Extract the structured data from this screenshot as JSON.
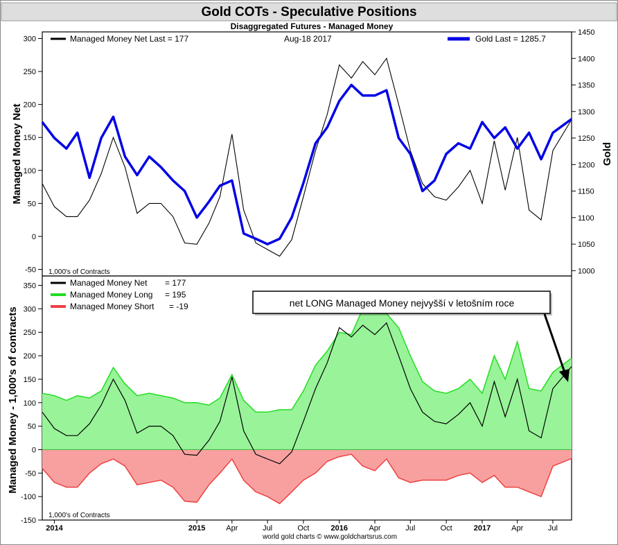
{
  "title": "Gold COTs - Speculative Positions",
  "subtitle": "Disaggregated Futures - Managed Money",
  "footer": "world gold charts © www.goldchartsrus.com",
  "colors": {
    "background": "#ffffff",
    "gold": "#0000e6",
    "net": "#000000",
    "long_line": "#22dd22",
    "long_fill": "#99f399",
    "short_line": "#ee4040",
    "short_fill": "#f8a0a0"
  },
  "top_panel": {
    "legend_net": "Managed Money Net   Last = 177",
    "legend_date": "Aug-18  2017",
    "legend_gold": "Gold Last = 1285.7",
    "ylabel_left": "Managed Money Net",
    "ylabel_right": "Gold",
    "units_note": "1,000's of Contracts",
    "left_ticks": [
      "300",
      "250",
      "200",
      "150",
      "100",
      "50",
      "0",
      "-50"
    ],
    "right_ticks": [
      "1450",
      "1400",
      "1350",
      "1300",
      "1250",
      "1200",
      "1150",
      "1100",
      "1050",
      "1000"
    ]
  },
  "bottom_panel": {
    "legend": [
      {
        "label": "Managed Money Net",
        "value": "= 177"
      },
      {
        "label": "Managed Money Long",
        "value": "= 195"
      },
      {
        "label": "Managed Money Short",
        "value": "= -19"
      }
    ],
    "annotation": "net LONG Managed Money nejvyšší v letošním roce",
    "ylabel": "Managed Money - 1,000's of contracts",
    "units_note": "1,000's of Contracts",
    "ticks": [
      "350",
      "300",
      "250",
      "200",
      "150",
      "100",
      "50",
      "0",
      "-50",
      "-100",
      "-150"
    ]
  },
  "x_axis": {
    "labels": [
      "2014",
      "2015",
      "Apr",
      "Jul",
      "Oct",
      "2016",
      "Apr",
      "Jul",
      "Oct",
      "2017",
      "Apr",
      "Jul"
    ],
    "bold": [
      true,
      true,
      false,
      false,
      false,
      true,
      false,
      false,
      false,
      true,
      false,
      false
    ]
  },
  "chart_data": [
    {
      "type": "line",
      "title": "Gold COTs - Speculative Positions",
      "subtitle": "Disaggregated Futures - Managed Money",
      "ylabel": "Managed Money Net",
      "y2label": "Gold",
      "ylim": [
        -60,
        310
      ],
      "y2lim": [
        990,
        1450
      ],
      "x_range": [
        "2013-12-01",
        "2017-08-18"
      ],
      "series": [
        {
          "name": "Managed Money Net",
          "axis": "left",
          "x": [
            "2013-12-01",
            "2014-01-01",
            "2014-02-01",
            "2014-03-01",
            "2014-04-01",
            "2014-05-01",
            "2014-06-01",
            "2014-07-01",
            "2014-08-01",
            "2014-09-01",
            "2014-10-01",
            "2014-11-01",
            "2014-12-01",
            "2015-01-01",
            "2015-02-01",
            "2015-03-01",
            "2015-04-01",
            "2015-05-01",
            "2015-06-01",
            "2015-07-01",
            "2015-08-01",
            "2015-09-01",
            "2015-10-01",
            "2015-11-01",
            "2015-12-01",
            "2016-01-01",
            "2016-02-01",
            "2016-03-01",
            "2016-04-01",
            "2016-05-01",
            "2016-06-01",
            "2016-07-01",
            "2016-08-01",
            "2016-09-01",
            "2016-10-01",
            "2016-11-01",
            "2016-12-01",
            "2017-01-01",
            "2017-02-01",
            "2017-03-01",
            "2017-04-01",
            "2017-05-01",
            "2017-06-01",
            "2017-07-01",
            "2017-08-18"
          ],
          "values": [
            80,
            45,
            30,
            30,
            55,
            95,
            150,
            105,
            35,
            50,
            50,
            30,
            -10,
            -12,
            20,
            60,
            155,
            40,
            -10,
            -20,
            -30,
            -5,
            60,
            130,
            185,
            260,
            240,
            265,
            245,
            270,
            200,
            130,
            80,
            60,
            55,
            75,
            100,
            50,
            145,
            70,
            150,
            40,
            25,
            130,
            177
          ]
        },
        {
          "name": "Gold",
          "axis": "right",
          "x": [
            "2013-12-01",
            "2014-01-01",
            "2014-02-01",
            "2014-03-01",
            "2014-04-01",
            "2014-05-01",
            "2014-06-01",
            "2014-07-01",
            "2014-08-01",
            "2014-09-01",
            "2014-10-01",
            "2014-11-01",
            "2014-12-01",
            "2015-01-01",
            "2015-02-01",
            "2015-03-01",
            "2015-04-01",
            "2015-05-01",
            "2015-06-01",
            "2015-07-01",
            "2015-08-01",
            "2015-09-01",
            "2015-10-01",
            "2015-11-01",
            "2015-12-01",
            "2016-01-01",
            "2016-02-01",
            "2016-03-01",
            "2016-04-01",
            "2016-05-01",
            "2016-06-01",
            "2016-07-01",
            "2016-08-01",
            "2016-09-01",
            "2016-10-01",
            "2016-11-01",
            "2016-12-01",
            "2017-01-01",
            "2017-02-01",
            "2017-03-01",
            "2017-04-01",
            "2017-05-01",
            "2017-06-01",
            "2017-07-01",
            "2017-08-18"
          ],
          "values": [
            1280,
            1250,
            1230,
            1260,
            1175,
            1250,
            1290,
            1215,
            1180,
            1215,
            1195,
            1170,
            1150,
            1100,
            1130,
            1160,
            1170,
            1070,
            1060,
            1050,
            1060,
            1100,
            1165,
            1240,
            1270,
            1320,
            1350,
            1330,
            1330,
            1340,
            1250,
            1220,
            1150,
            1170,
            1220,
            1240,
            1230,
            1280,
            1250,
            1270,
            1230,
            1260,
            1210,
            1260,
            1285.7
          ]
        }
      ]
    },
    {
      "type": "area",
      "ylabel": "Managed Money - 1,000's of contracts",
      "ylim": [
        -150,
        370
      ],
      "x_range": [
        "2013-12-01",
        "2017-08-18"
      ],
      "series": [
        {
          "name": "Managed Money Long",
          "x": [
            "2013-12-01",
            "2014-01-01",
            "2014-02-01",
            "2014-03-01",
            "2014-04-01",
            "2014-05-01",
            "2014-06-01",
            "2014-07-01",
            "2014-08-01",
            "2014-09-01",
            "2014-10-01",
            "2014-11-01",
            "2014-12-01",
            "2015-01-01",
            "2015-02-01",
            "2015-03-01",
            "2015-04-01",
            "2015-05-01",
            "2015-06-01",
            "2015-07-01",
            "2015-08-01",
            "2015-09-01",
            "2015-10-01",
            "2015-11-01",
            "2015-12-01",
            "2016-01-01",
            "2016-02-01",
            "2016-03-01",
            "2016-04-01",
            "2016-05-01",
            "2016-06-01",
            "2016-07-01",
            "2016-08-01",
            "2016-09-01",
            "2016-10-01",
            "2016-11-01",
            "2016-12-01",
            "2017-01-01",
            "2017-02-01",
            "2017-03-01",
            "2017-04-01",
            "2017-05-01",
            "2017-06-01",
            "2017-07-01",
            "2017-08-18"
          ],
          "values": [
            120,
            115,
            105,
            115,
            110,
            125,
            175,
            140,
            115,
            120,
            115,
            110,
            100,
            100,
            95,
            110,
            160,
            105,
            80,
            80,
            85,
            85,
            125,
            180,
            210,
            250,
            245,
            300,
            290,
            290,
            260,
            200,
            145,
            125,
            120,
            130,
            150,
            120,
            200,
            150,
            230,
            130,
            125,
            165,
            195
          ]
        },
        {
          "name": "Managed Money Short",
          "x": [
            "2013-12-01",
            "2014-01-01",
            "2014-02-01",
            "2014-03-01",
            "2014-04-01",
            "2014-05-01",
            "2014-06-01",
            "2014-07-01",
            "2014-08-01",
            "2014-09-01",
            "2014-10-01",
            "2014-11-01",
            "2014-12-01",
            "2015-01-01",
            "2015-02-01",
            "2015-03-01",
            "2015-04-01",
            "2015-05-01",
            "2015-06-01",
            "2015-07-01",
            "2015-08-01",
            "2015-09-01",
            "2015-10-01",
            "2015-11-01",
            "2015-12-01",
            "2016-01-01",
            "2016-02-01",
            "2016-03-01",
            "2016-04-01",
            "2016-05-01",
            "2016-06-01",
            "2016-07-01",
            "2016-08-01",
            "2016-09-01",
            "2016-10-01",
            "2016-11-01",
            "2016-12-01",
            "2017-01-01",
            "2017-02-01",
            "2017-03-01",
            "2017-04-01",
            "2017-05-01",
            "2017-06-01",
            "2017-07-01",
            "2017-08-18"
          ],
          "values": [
            -40,
            -70,
            -80,
            -80,
            -50,
            -30,
            -20,
            -35,
            -75,
            -70,
            -65,
            -80,
            -110,
            -112,
            -75,
            -50,
            -20,
            -65,
            -90,
            -100,
            -115,
            -90,
            -65,
            -50,
            -25,
            -15,
            -10,
            -35,
            -45,
            -20,
            -60,
            -70,
            -65,
            -65,
            -65,
            -55,
            -50,
            -70,
            -55,
            -80,
            -80,
            -90,
            -100,
            -35,
            -19
          ]
        },
        {
          "name": "Managed Money Net",
          "x": [
            "2013-12-01",
            "2014-01-01",
            "2014-02-01",
            "2014-03-01",
            "2014-04-01",
            "2014-05-01",
            "2014-06-01",
            "2014-07-01",
            "2014-08-01",
            "2014-09-01",
            "2014-10-01",
            "2014-11-01",
            "2014-12-01",
            "2015-01-01",
            "2015-02-01",
            "2015-03-01",
            "2015-04-01",
            "2015-05-01",
            "2015-06-01",
            "2015-07-01",
            "2015-08-01",
            "2015-09-01",
            "2015-10-01",
            "2015-11-01",
            "2015-12-01",
            "2016-01-01",
            "2016-02-01",
            "2016-03-01",
            "2016-04-01",
            "2016-05-01",
            "2016-06-01",
            "2016-07-01",
            "2016-08-01",
            "2016-09-01",
            "2016-10-01",
            "2016-11-01",
            "2016-12-01",
            "2017-01-01",
            "2017-02-01",
            "2017-03-01",
            "2017-04-01",
            "2017-05-01",
            "2017-06-01",
            "2017-07-01",
            "2017-08-18"
          ],
          "values": [
            80,
            45,
            30,
            30,
            55,
            95,
            150,
            105,
            35,
            50,
            50,
            30,
            -10,
            -12,
            20,
            60,
            155,
            40,
            -10,
            -20,
            -30,
            -5,
            60,
            130,
            185,
            260,
            240,
            265,
            245,
            270,
            200,
            130,
            80,
            60,
            55,
            75,
            100,
            50,
            145,
            70,
            150,
            40,
            25,
            130,
            177
          ]
        }
      ]
    }
  ]
}
